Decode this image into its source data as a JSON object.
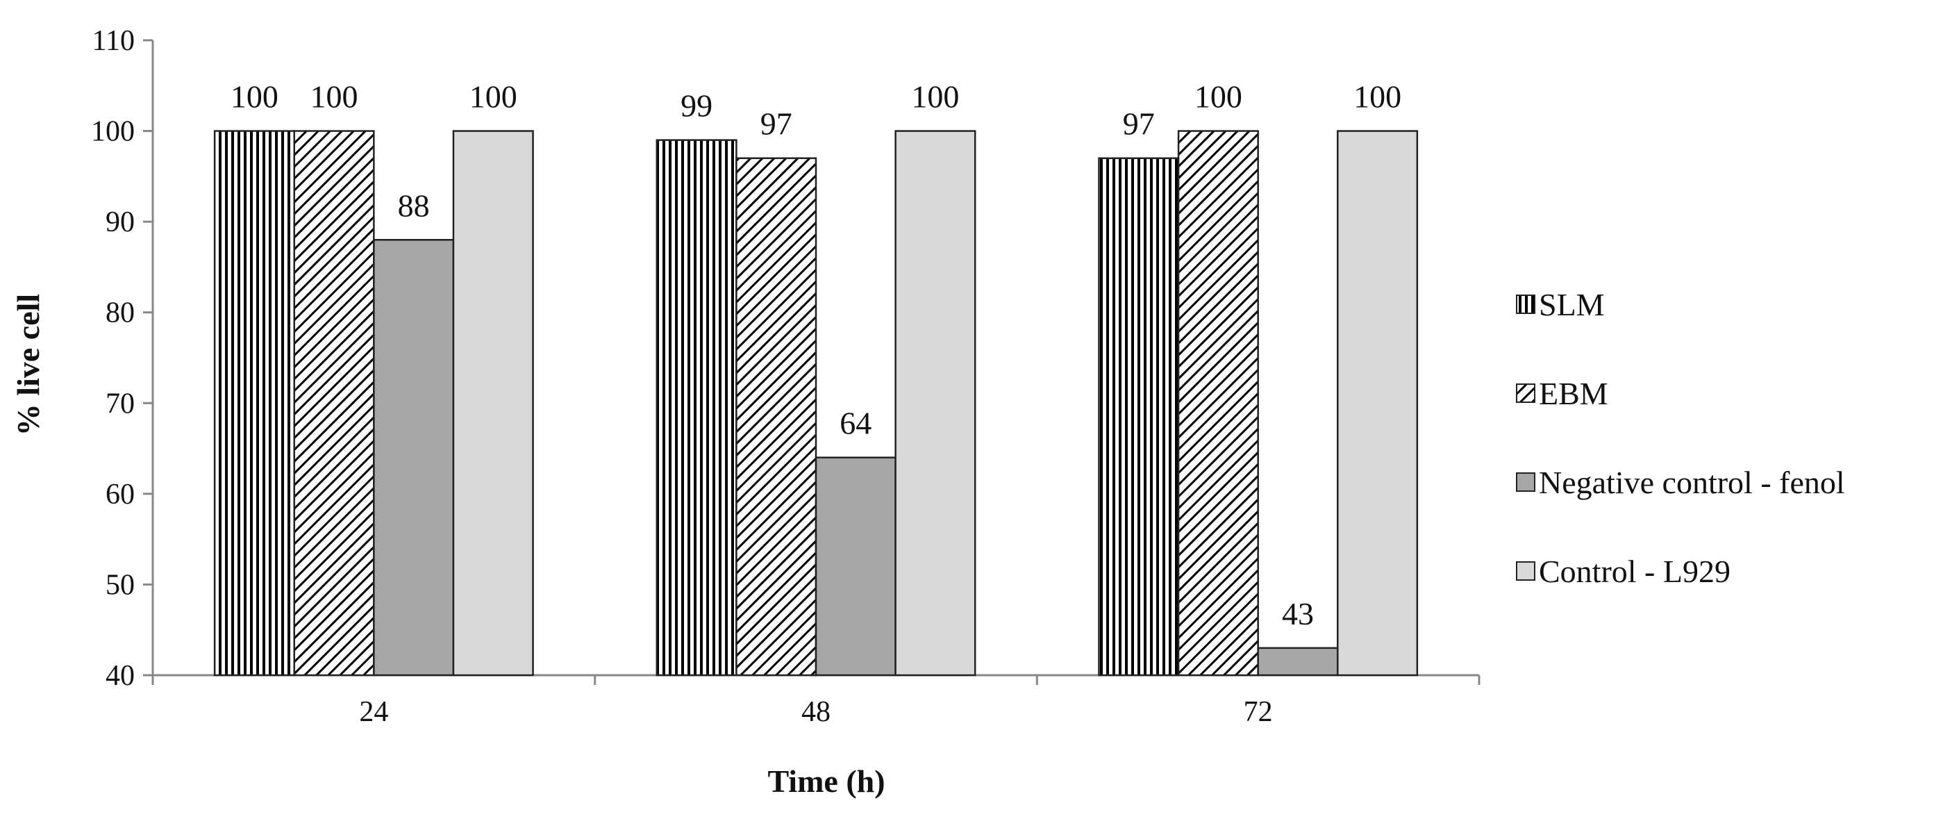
{
  "chart_data": {
    "type": "bar",
    "title": "",
    "xlabel": "Time (h)",
    "ylabel": "% live cell",
    "categories": [
      "24",
      "48",
      "72"
    ],
    "ylim": [
      40,
      110
    ],
    "yticks": [
      40,
      50,
      60,
      70,
      80,
      90,
      100,
      110
    ],
    "grid": false,
    "legend_position": "right",
    "series": [
      {
        "name": "SLM",
        "values": [
          100,
          99,
          97
        ],
        "pattern": "vertical-stripes",
        "color": "#ffffff",
        "labels": [
          "100",
          "99",
          "97"
        ]
      },
      {
        "name": "EBM",
        "values": [
          100,
          97,
          100
        ],
        "pattern": "diagonal-stripes",
        "color": "#ffffff",
        "labels": [
          "100",
          "97",
          "100"
        ]
      },
      {
        "name": "Negative control - fenol",
        "values": [
          88,
          64,
          43
        ],
        "pattern": "solid",
        "color": "#a6a6a6",
        "labels": [
          "88",
          "64",
          "43"
        ]
      },
      {
        "name": "Control - L929",
        "values": [
          100,
          100,
          100
        ],
        "pattern": "solid",
        "color": "#d9d9d9",
        "labels": [
          "100",
          "100",
          "100"
        ]
      }
    ]
  }
}
